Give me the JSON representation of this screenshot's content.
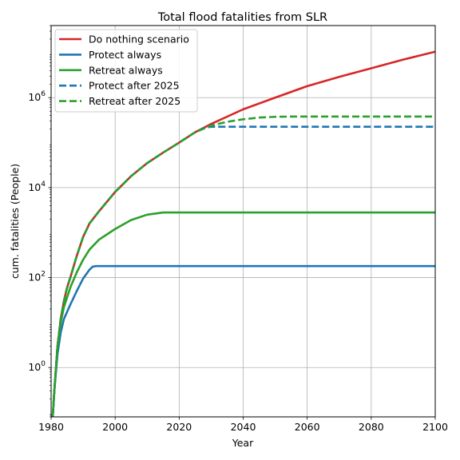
{
  "chart_data": {
    "type": "line",
    "title": "Total flood fatalities from SLR",
    "xlabel": "Year",
    "ylabel": "cum. fatalities (People)",
    "xlim": [
      1980,
      2100
    ],
    "ylim": [
      0.08,
      40000000
    ],
    "yscale": "log",
    "grid": true,
    "legend": "top-left",
    "x_ticks": [
      {
        "value": 1980,
        "label": "1980"
      },
      {
        "value": 2000,
        "label": "2000"
      },
      {
        "value": 2020,
        "label": "2020"
      },
      {
        "value": 2040,
        "label": "2040"
      },
      {
        "value": 2060,
        "label": "2060"
      },
      {
        "value": 2080,
        "label": "2080"
      },
      {
        "value": 2100,
        "label": "2100"
      }
    ],
    "y_ticks": [
      {
        "value": 1,
        "base": "10",
        "exp": "0"
      },
      {
        "value": 100,
        "base": "10",
        "exp": "2"
      },
      {
        "value": 10000,
        "base": "10",
        "exp": "4"
      },
      {
        "value": 1000000,
        "base": "10",
        "exp": "6"
      }
    ],
    "series": [
      {
        "name": "Do nothing scenario",
        "color": "#d62728",
        "style": "solid",
        "x": [
          1980.5,
          1981,
          1982,
          1983,
          1984,
          1985,
          1986,
          1988,
          1990,
          1992,
          1995,
          2000,
          2005,
          2010,
          2015,
          2020,
          2025,
          2030,
          2040,
          2050,
          2060,
          2070,
          2080,
          2090,
          2100
        ],
        "y": [
          0.08,
          0.3,
          3,
          12,
          30,
          60,
          100,
          300,
          800,
          1600,
          3000,
          8000,
          18000,
          35000,
          60000,
          100000,
          170000,
          260000,
          550000,
          1000000,
          1800000,
          2900000,
          4500000,
          7000000,
          10500000
        ]
      },
      {
        "name": "Protect always",
        "color": "#1f77b4",
        "style": "solid",
        "x": [
          1980.5,
          1981,
          1982,
          1983,
          1984,
          1986,
          1988,
          1990,
          1992,
          1993,
          1994,
          1996,
          2000,
          2020,
          2050,
          2100
        ],
        "y": [
          0.08,
          0.3,
          2,
          6,
          12,
          25,
          50,
          95,
          150,
          175,
          180,
          180,
          180,
          180,
          180,
          180
        ]
      },
      {
        "name": "Retreat always",
        "color": "#2ca02c",
        "style": "solid",
        "x": [
          1980.5,
          1981,
          1982,
          1983,
          1984,
          1986,
          1988,
          1990,
          1992,
          1995,
          2000,
          2005,
          2010,
          2015,
          2020,
          2050,
          2100
        ],
        "y": [
          0.08,
          0.3,
          3,
          10,
          22,
          60,
          130,
          250,
          420,
          700,
          1200,
          1900,
          2500,
          2800,
          2800,
          2800,
          2800
        ]
      },
      {
        "name": "Protect after 2025",
        "color": "#1f77b4",
        "style": "dashed",
        "x": [
          1980.5,
          1981,
          1982,
          1983,
          1984,
          1985,
          1986,
          1988,
          1990,
          1992,
          1995,
          2000,
          2005,
          2010,
          2015,
          2020,
          2025,
          2028,
          2030,
          2050,
          2100
        ],
        "y": [
          0.08,
          0.3,
          3,
          12,
          30,
          60,
          100,
          300,
          800,
          1600,
          3000,
          8000,
          18000,
          35000,
          60000,
          100000,
          170000,
          215000,
          225000,
          225000,
          225000
        ]
      },
      {
        "name": "Retreat after 2025",
        "color": "#2ca02c",
        "style": "dashed",
        "x": [
          1980.5,
          1981,
          1982,
          1983,
          1984,
          1985,
          1986,
          1988,
          1990,
          1992,
          1995,
          2000,
          2005,
          2010,
          2015,
          2020,
          2025,
          2030,
          2035,
          2040,
          2045,
          2050,
          2055,
          2060,
          2100
        ],
        "y": [
          0.08,
          0.3,
          3,
          12,
          30,
          60,
          100,
          300,
          800,
          1600,
          3000,
          8000,
          18000,
          35000,
          60000,
          100000,
          170000,
          240000,
          290000,
          330000,
          360000,
          375000,
          380000,
          380000,
          380000
        ]
      }
    ]
  }
}
